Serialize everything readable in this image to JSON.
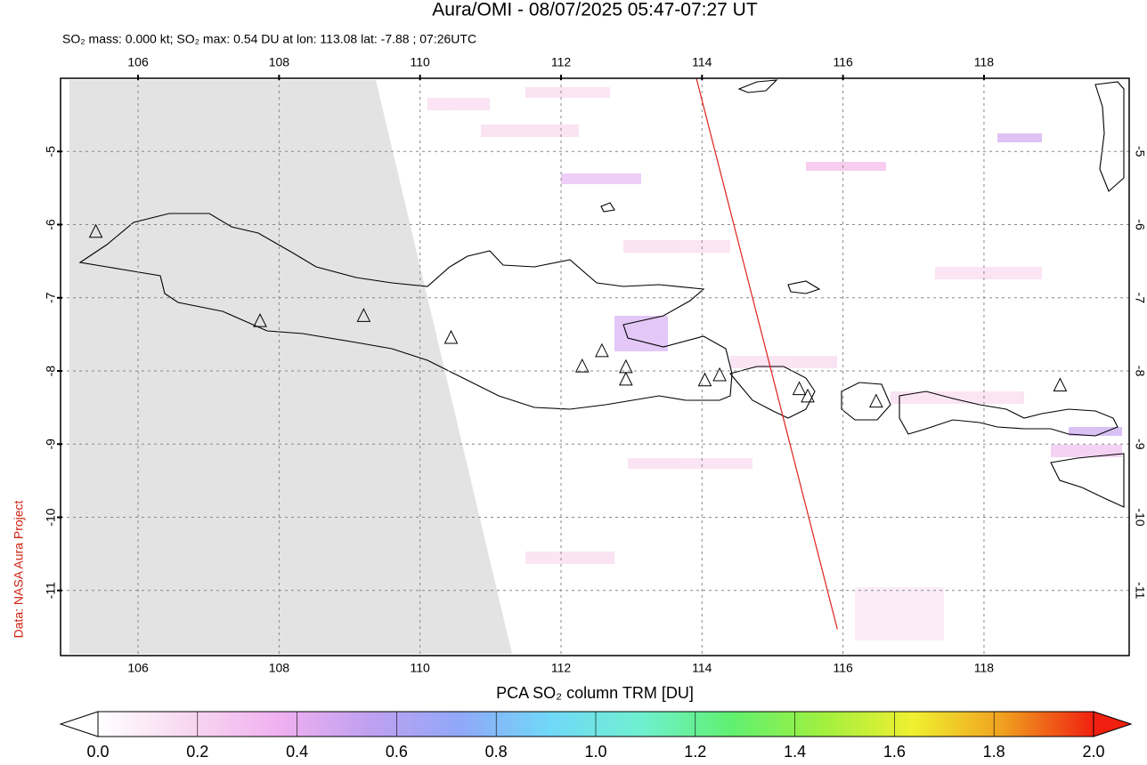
{
  "chart_data": {
    "type": "map",
    "title": "Aura/OMI - 08/07/2025 05:47-07:27 UT",
    "subtitle": "SO₂ mass: 0.000 kt; SO₂ max: 0.54 DU at lon: 113.08 lat: -7.88 ; 07:26UTC",
    "credit": "Data: NASA Aura Project",
    "xlim": [
      104.9,
      120.06
    ],
    "ylim": [
      -11.89,
      -4.0
    ],
    "xticks": [
      106,
      108,
      110,
      112,
      114,
      116,
      118
    ],
    "yticks": [
      -5,
      -6,
      -7,
      -8,
      -9,
      -10,
      -11
    ],
    "grid": true,
    "volcanoes": {
      "lon": [
        105.4,
        107.73,
        109.2,
        110.44,
        112.3,
        112.58,
        112.92,
        112.92,
        114.04,
        114.25,
        115.38,
        115.5,
        116.47,
        119.08
      ],
      "lat": [
        -6.1,
        -7.32,
        -7.25,
        -7.55,
        -7.94,
        -7.73,
        -7.95,
        -8.12,
        -8.13,
        -8.06,
        -8.25,
        -8.35,
        -8.42,
        -8.2
      ]
    },
    "track": {
      "lon": [
        113.92,
        115.92
      ],
      "lat": [
        -4.0,
        -11.53
      ],
      "color": "#e0201c"
    },
    "colorbar": {
      "label": "PCA SO₂ column TRM [DU]",
      "lim": [
        0,
        2
      ],
      "ticks": [
        {
          "value": 0,
          "label": "0.0"
        },
        0.2,
        0.4,
        0.6,
        0.8,
        {
          "value": 1,
          "label": "1.0"
        },
        1.2,
        1.4,
        1.6,
        1.8,
        {
          "value": 2,
          "label": "2.0"
        }
      ],
      "colors": [
        "#ffffff",
        "#f8d8f0",
        "#f0b0f0",
        "#c0a0f0",
        "#90a8f8",
        "#70d8f8",
        "#70f0d0",
        "#60f070",
        "#a0f040",
        "#f0f030",
        "#f0a020",
        "#f02010"
      ]
    }
  }
}
